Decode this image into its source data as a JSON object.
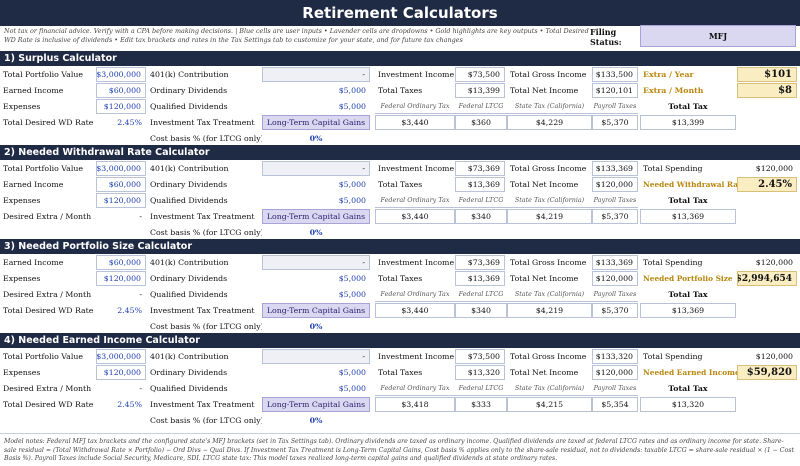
{
  "title": "Retirement Calculators",
  "note": "Not tax or financial advice. Verify with a CPA before making decisions.  |  Blue cells are user inputs  •  Lavender cells are dropdowns  •  Gold highlights are key outputs  •  Total Desired WD Rate is inclusive of dividends  •  Edit tax brackets and rates in the Tax Settings tab to customize for your state,  and for future tax  changes",
  "filing_status_label": "Filing Status:",
  "filing_status_value": "MFJ",
  "labels": {
    "total_portfolio_value": "Total Portfolio Value",
    "earned_income": "Earned Income",
    "expenses": "Expenses",
    "total_desired_wd_rate": "Total Desired WD Rate",
    "desired_extra_month": "Desired Extra / Month",
    "contribution_401k": "401(k) Contribution",
    "ordinary_dividends": "Ordinary Dividends",
    "qualified_dividends": "Qualified Dividends",
    "investment_tax_treatment": "Investment Tax Treatment",
    "cost_basis": "Cost basis % (for LTCG only)",
    "investment_income": "Investment Income",
    "total_taxes": "Total Taxes",
    "total_gross_income": "Total Gross Income",
    "total_net_income": "Total Net Income",
    "total_spending": "Total Spending",
    "total_tax": "Total Tax",
    "h_federal_ordinary": "Federal Ordinary Tax",
    "h_federal_ltcg": "Federal LTCG",
    "h_state_tax": "State Tax (California)",
    "h_payroll": "Payroll Taxes"
  },
  "s1": {
    "title": "1) Surplus Calculator",
    "portfolio": "$3,000,000",
    "earned": "$60,000",
    "expenses": "$120,000",
    "wd_rate": "2.45%",
    "contrib": "-",
    "ord_div": "$5,000",
    "qual_div": "$5,000",
    "treatment": "Long-Term Capital Gains",
    "cost_basis": "0%",
    "inv_income": "$73,500",
    "total_taxes": "$13,399",
    "gross": "$133,500",
    "net": "$120,101",
    "out1_label": "Extra / Year",
    "out1_value": "$101",
    "out2_label": "Extra / Month",
    "out2_value": "$8",
    "fed_ord": "$3,440",
    "fed_ltcg": "$360",
    "state": "$4,229",
    "payroll": "$5,370",
    "total_tax": "$13,399"
  },
  "s2": {
    "title": "2) Needed Withdrawal Rate Calculator",
    "portfolio": "$3,000,000",
    "earned": "$60,000",
    "expenses": "$120,000",
    "extra_month": "-",
    "contrib": "-",
    "ord_div": "$5,000",
    "qual_div": "$5,000",
    "treatment": "Long-Term Capital Gains",
    "cost_basis": "0%",
    "inv_income": "$73,369",
    "total_taxes": "$13,369",
    "gross": "$133,369",
    "net": "$120,000",
    "spending": "$120,000",
    "out_label": "Needed Withdrawal Rate",
    "out_value": "2.45%",
    "fed_ord": "$3,440",
    "fed_ltcg": "$340",
    "state": "$4,219",
    "payroll": "$5,370",
    "total_tax": "$13,369"
  },
  "s3": {
    "title": "3) Needed Portfolio Size Calculator",
    "earned": "$60,000",
    "expenses": "$120,000",
    "extra_month": "-",
    "wd_rate": "2.45%",
    "contrib": "-",
    "ord_div": "$5,000",
    "qual_div": "$5,000",
    "treatment": "Long-Term Capital Gains",
    "cost_basis": "0%",
    "inv_income": "$73,369",
    "total_taxes": "$13,369",
    "gross": "$133,369",
    "net": "$120,000",
    "spending": "$120,000",
    "out_label": "Needed Portfolio Size",
    "out_value": "$2,994,654",
    "fed_ord": "$3,440",
    "fed_ltcg": "$340",
    "state": "$4,219",
    "payroll": "$5,370",
    "total_tax": "$13,369"
  },
  "s4": {
    "title": "4) Needed Earned Income Calculator",
    "portfolio": "$3,000,000",
    "expenses": "$120,000",
    "extra_month": "-",
    "wd_rate": "2.45%",
    "contrib": "-",
    "ord_div": "$5,000",
    "qual_div": "$5,000",
    "treatment": "Long-Term Capital Gains",
    "cost_basis": "0%",
    "inv_income": "$73,500",
    "total_taxes": "$13,320",
    "gross": "$133,320",
    "net": "$120,000",
    "spending": "$120,000",
    "out_label": "Needed Earned Income",
    "out_value": "$59,820",
    "fed_ord": "$3,418",
    "fed_ltcg": "$333",
    "state": "$4,215",
    "payroll": "$5,354",
    "total_tax": "$13,320"
  },
  "footer": "Model notes: Federal MFJ tax brackets and the configured state's MFJ brackets (set in Tax Settings tab). Ordinary dividends are taxed as ordinary income. Qualified dividends are taxed at federal LTCG rates and as ordinary income for state. Share-sale residual = (Total Withdrawal Rate × Portfolio) − Ord Divs − Qual Divs. If Investment Tax Treatment is Long-Term Capital Gains, Cost basis % applies only to the share-sale residual, not to dividends: taxable LTCG = share-sale residual × (1 − Cost Basis %).  Payroll Taxes include Social Security, Medicare, SDI.  LTCG state tax: This model taxes realized long-term capital gains and qualified dividends at state ordinary rates."
}
